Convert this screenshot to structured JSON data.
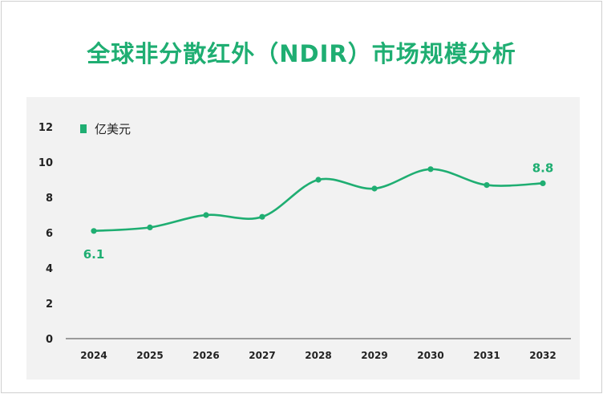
{
  "title": "全球非分散红外（NDIR）市场规模分析",
  "colors": {
    "series": "#1fae72",
    "axis": "#444444",
    "plot_bg": "#f2f2f2"
  },
  "chart_data": {
    "type": "line",
    "title": "全球非分散红外（NDIR）市场规模分析",
    "categories": [
      "2024",
      "2025",
      "2026",
      "2027",
      "2028",
      "2029",
      "2030",
      "2031",
      "2032"
    ],
    "series": [
      {
        "name": "亿美元",
        "values": [
          6.1,
          6.3,
          7.0,
          6.9,
          9.0,
          8.5,
          9.6,
          8.7,
          8.8
        ]
      }
    ],
    "ylim": [
      0,
      12
    ],
    "yticks": [
      0,
      2,
      4,
      6,
      8,
      10,
      12
    ],
    "data_labels": [
      {
        "category": "2024",
        "text": "6.1"
      },
      {
        "category": "2032",
        "text": "8.8"
      }
    ],
    "legend": "top-left",
    "grid": false
  }
}
